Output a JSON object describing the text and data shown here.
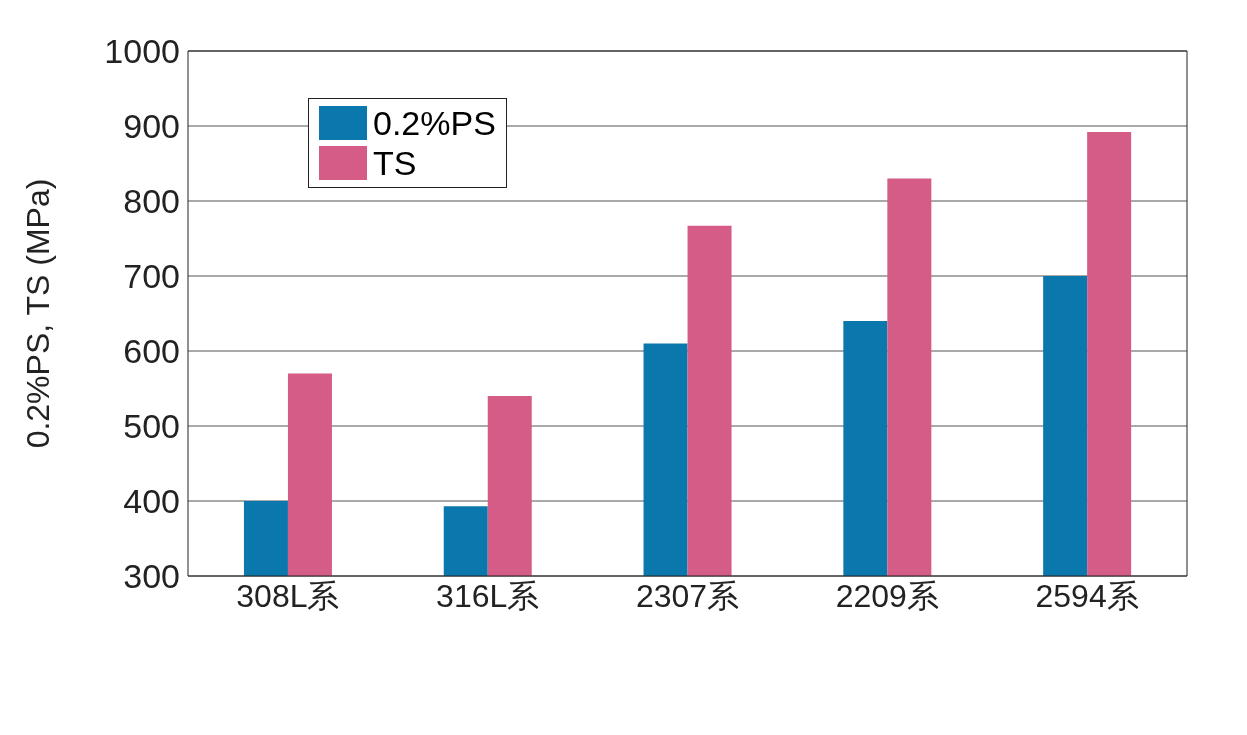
{
  "chart_data": {
    "type": "bar",
    "ylabel": "0.2%PS, TS (MPa)",
    "categories": [
      "308L系",
      "316L系",
      "2307系",
      "2209系",
      "2594系"
    ],
    "series": [
      {
        "name": "0.2%PS",
        "color": "#0a78ad",
        "values": [
          400,
          393,
          610,
          640,
          700
        ]
      },
      {
        "name": "TS",
        "color": "#d45c86",
        "values": [
          570,
          540,
          767,
          830,
          892
        ]
      }
    ],
    "ylim": [
      300,
      1000
    ],
    "yticks": [
      300,
      400,
      500,
      600,
      700,
      800,
      900,
      1000
    ],
    "grid": "y",
    "legend": "top left"
  }
}
